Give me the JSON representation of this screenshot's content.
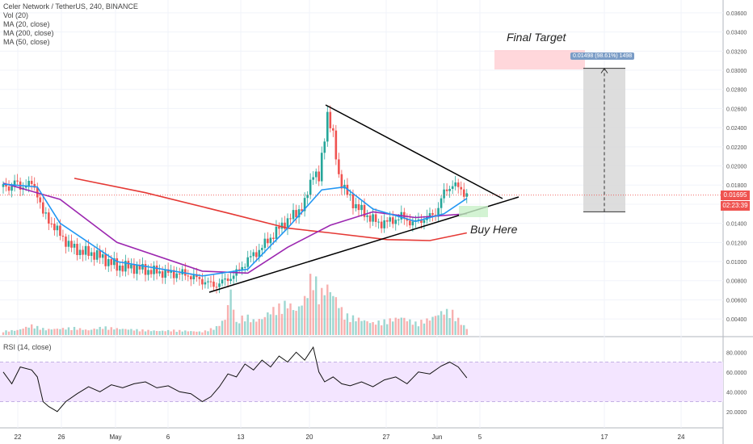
{
  "legend": {
    "title": "Celer Network / TetherUS, 240, BINANCE",
    "lines": [
      "Vol (20)",
      "MA (20, close)",
      "MA (200, close)",
      "MA (50, close)"
    ]
  },
  "rsi": {
    "title": "RSI (14, close)",
    "ticks": [
      "80.0000",
      "60.0000",
      "40.0000",
      "20.0000"
    ]
  },
  "annotations": {
    "final_target": "Final Target",
    "buy_here": "Buy Here"
  },
  "measure_label": "0.01498 (98.61%) 1498",
  "price_tags": {
    "last_price": "0.01695",
    "countdown": "02:23:39"
  },
  "colors": {
    "up": "#26a69a",
    "down": "#ef5350",
    "ma20": "#2196f3",
    "ma50": "#9c27b0",
    "ma200": "#e53935",
    "rsi_band": "#f3e5ff",
    "rsi_line": "#111111"
  },
  "chart_data": {
    "type": "candlestick",
    "title": "Celer Network / TetherUS, 240, BINANCE",
    "x_tick_labels": [
      "22",
      "26",
      "May",
      "6",
      "13",
      "20",
      "27",
      "Jun",
      "5",
      "17",
      "24"
    ],
    "y_tick_labels": [
      "0.03600",
      "0.03400",
      "0.03200",
      "0.03000",
      "0.02800",
      "0.02600",
      "0.02400",
      "0.02200",
      "0.02000",
      "0.01800",
      "0.01600",
      "0.01400",
      "0.01200",
      "0.01000",
      "0.00800",
      "0.00600",
      "0.00400"
    ],
    "ylim": [
      0.003,
      0.0365
    ],
    "price_path": [
      [
        0,
        0.0178
      ],
      [
        2,
        0.0177
      ],
      [
        4,
        0.0184
      ],
      [
        6,
        0.0176
      ],
      [
        8,
        0.0182
      ],
      [
        10,
        0.018
      ],
      [
        12,
        0.0172
      ],
      [
        14,
        0.015
      ],
      [
        17,
        0.014
      ],
      [
        20,
        0.0128
      ],
      [
        24,
        0.0115
      ],
      [
        28,
        0.011
      ],
      [
        32,
        0.0108
      ],
      [
        36,
        0.0102
      ],
      [
        40,
        0.0095
      ],
      [
        46,
        0.0094
      ],
      [
        52,
        0.009
      ],
      [
        58,
        0.0088
      ],
      [
        64,
        0.0087
      ],
      [
        70,
        0.008
      ],
      [
        74,
        0.0075
      ],
      [
        78,
        0.008
      ],
      [
        82,
        0.0088
      ],
      [
        86,
        0.0102
      ],
      [
        90,
        0.0112
      ],
      [
        94,
        0.0125
      ],
      [
        98,
        0.0138
      ],
      [
        102,
        0.0148
      ],
      [
        106,
        0.016
      ],
      [
        109,
        0.0195
      ],
      [
        111,
        0.0185
      ],
      [
        114,
        0.0255
      ],
      [
        116,
        0.023
      ],
      [
        118,
        0.019
      ],
      [
        120,
        0.0175
      ],
      [
        124,
        0.0158
      ],
      [
        128,
        0.0148
      ],
      [
        132,
        0.014
      ],
      [
        136,
        0.0142
      ],
      [
        140,
        0.0147
      ],
      [
        144,
        0.014
      ],
      [
        148,
        0.0145
      ],
      [
        152,
        0.015
      ],
      [
        155,
        0.0172
      ],
      [
        158,
        0.0181
      ],
      [
        161,
        0.0175
      ],
      [
        163,
        0.017
      ]
    ],
    "ma20": [
      [
        0,
        0.0181
      ],
      [
        12,
        0.0178
      ],
      [
        20,
        0.014
      ],
      [
        40,
        0.01
      ],
      [
        70,
        0.0085
      ],
      [
        86,
        0.0092
      ],
      [
        100,
        0.0135
      ],
      [
        112,
        0.0175
      ],
      [
        120,
        0.0178
      ],
      [
        130,
        0.0155
      ],
      [
        145,
        0.0142
      ],
      [
        155,
        0.015
      ],
      [
        163,
        0.0166
      ]
    ],
    "ma50": [
      [
        0,
        0.0182
      ],
      [
        20,
        0.0165
      ],
      [
        40,
        0.012
      ],
      [
        70,
        0.009
      ],
      [
        86,
        0.0088
      ],
      [
        100,
        0.0115
      ],
      [
        115,
        0.0138
      ],
      [
        130,
        0.0152
      ],
      [
        145,
        0.0146
      ],
      [
        163,
        0.015
      ]
    ],
    "ma200": [
      [
        25,
        0.0187
      ],
      [
        50,
        0.0172
      ],
      [
        80,
        0.015
      ],
      [
        100,
        0.0135
      ],
      [
        115,
        0.013
      ],
      [
        135,
        0.0123
      ],
      [
        150,
        0.0122
      ],
      [
        163,
        0.013
      ]
    ],
    "volume": [
      [
        0,
        5
      ],
      [
        5,
        6
      ],
      [
        10,
        12
      ],
      [
        15,
        7
      ],
      [
        20,
        8
      ],
      [
        25,
        9
      ],
      [
        30,
        6
      ],
      [
        35,
        10
      ],
      [
        40,
        8
      ],
      [
        45,
        7
      ],
      [
        50,
        6
      ],
      [
        55,
        5
      ],
      [
        60,
        6
      ],
      [
        65,
        5
      ],
      [
        70,
        4
      ],
      [
        75,
        10
      ],
      [
        78,
        20
      ],
      [
        80,
        55
      ],
      [
        82,
        15
      ],
      [
        85,
        25
      ],
      [
        88,
        18
      ],
      [
        91,
        20
      ],
      [
        94,
        30
      ],
      [
        97,
        35
      ],
      [
        100,
        40
      ],
      [
        103,
        30
      ],
      [
        106,
        45
      ],
      [
        109,
        80
      ],
      [
        111,
        50
      ],
      [
        114,
        60
      ],
      [
        117,
        45
      ],
      [
        120,
        25
      ],
      [
        125,
        20
      ],
      [
        130,
        15
      ],
      [
        135,
        18
      ],
      [
        140,
        22
      ],
      [
        145,
        15
      ],
      [
        150,
        20
      ],
      [
        155,
        30
      ],
      [
        158,
        28
      ],
      [
        161,
        15
      ],
      [
        163,
        8
      ]
    ],
    "rsi_values": [
      [
        0,
        60
      ],
      [
        3,
        48
      ],
      [
        6,
        65
      ],
      [
        10,
        62
      ],
      [
        12,
        55
      ],
      [
        14,
        30
      ],
      [
        16,
        25
      ],
      [
        19,
        20
      ],
      [
        22,
        30
      ],
      [
        26,
        38
      ],
      [
        30,
        45
      ],
      [
        34,
        40
      ],
      [
        38,
        47
      ],
      [
        42,
        44
      ],
      [
        46,
        48
      ],
      [
        50,
        50
      ],
      [
        54,
        44
      ],
      [
        58,
        46
      ],
      [
        62,
        40
      ],
      [
        66,
        38
      ],
      [
        70,
        30
      ],
      [
        73,
        35
      ],
      [
        76,
        45
      ],
      [
        79,
        58
      ],
      [
        82,
        55
      ],
      [
        85,
        68
      ],
      [
        88,
        62
      ],
      [
        91,
        72
      ],
      [
        94,
        65
      ],
      [
        97,
        76
      ],
      [
        100,
        70
      ],
      [
        103,
        80
      ],
      [
        106,
        72
      ],
      [
        109,
        85
      ],
      [
        111,
        60
      ],
      [
        113,
        50
      ],
      [
        116,
        55
      ],
      [
        119,
        48
      ],
      [
        122,
        46
      ],
      [
        126,
        50
      ],
      [
        130,
        45
      ],
      [
        134,
        52
      ],
      [
        138,
        55
      ],
      [
        142,
        48
      ],
      [
        146,
        60
      ],
      [
        150,
        58
      ],
      [
        154,
        66
      ],
      [
        157,
        70
      ],
      [
        160,
        65
      ],
      [
        163,
        54
      ]
    ],
    "measure": {
      "from": 0.0152,
      "to": 0.0302,
      "label": "0.01498 (98.61%) 1498"
    }
  }
}
